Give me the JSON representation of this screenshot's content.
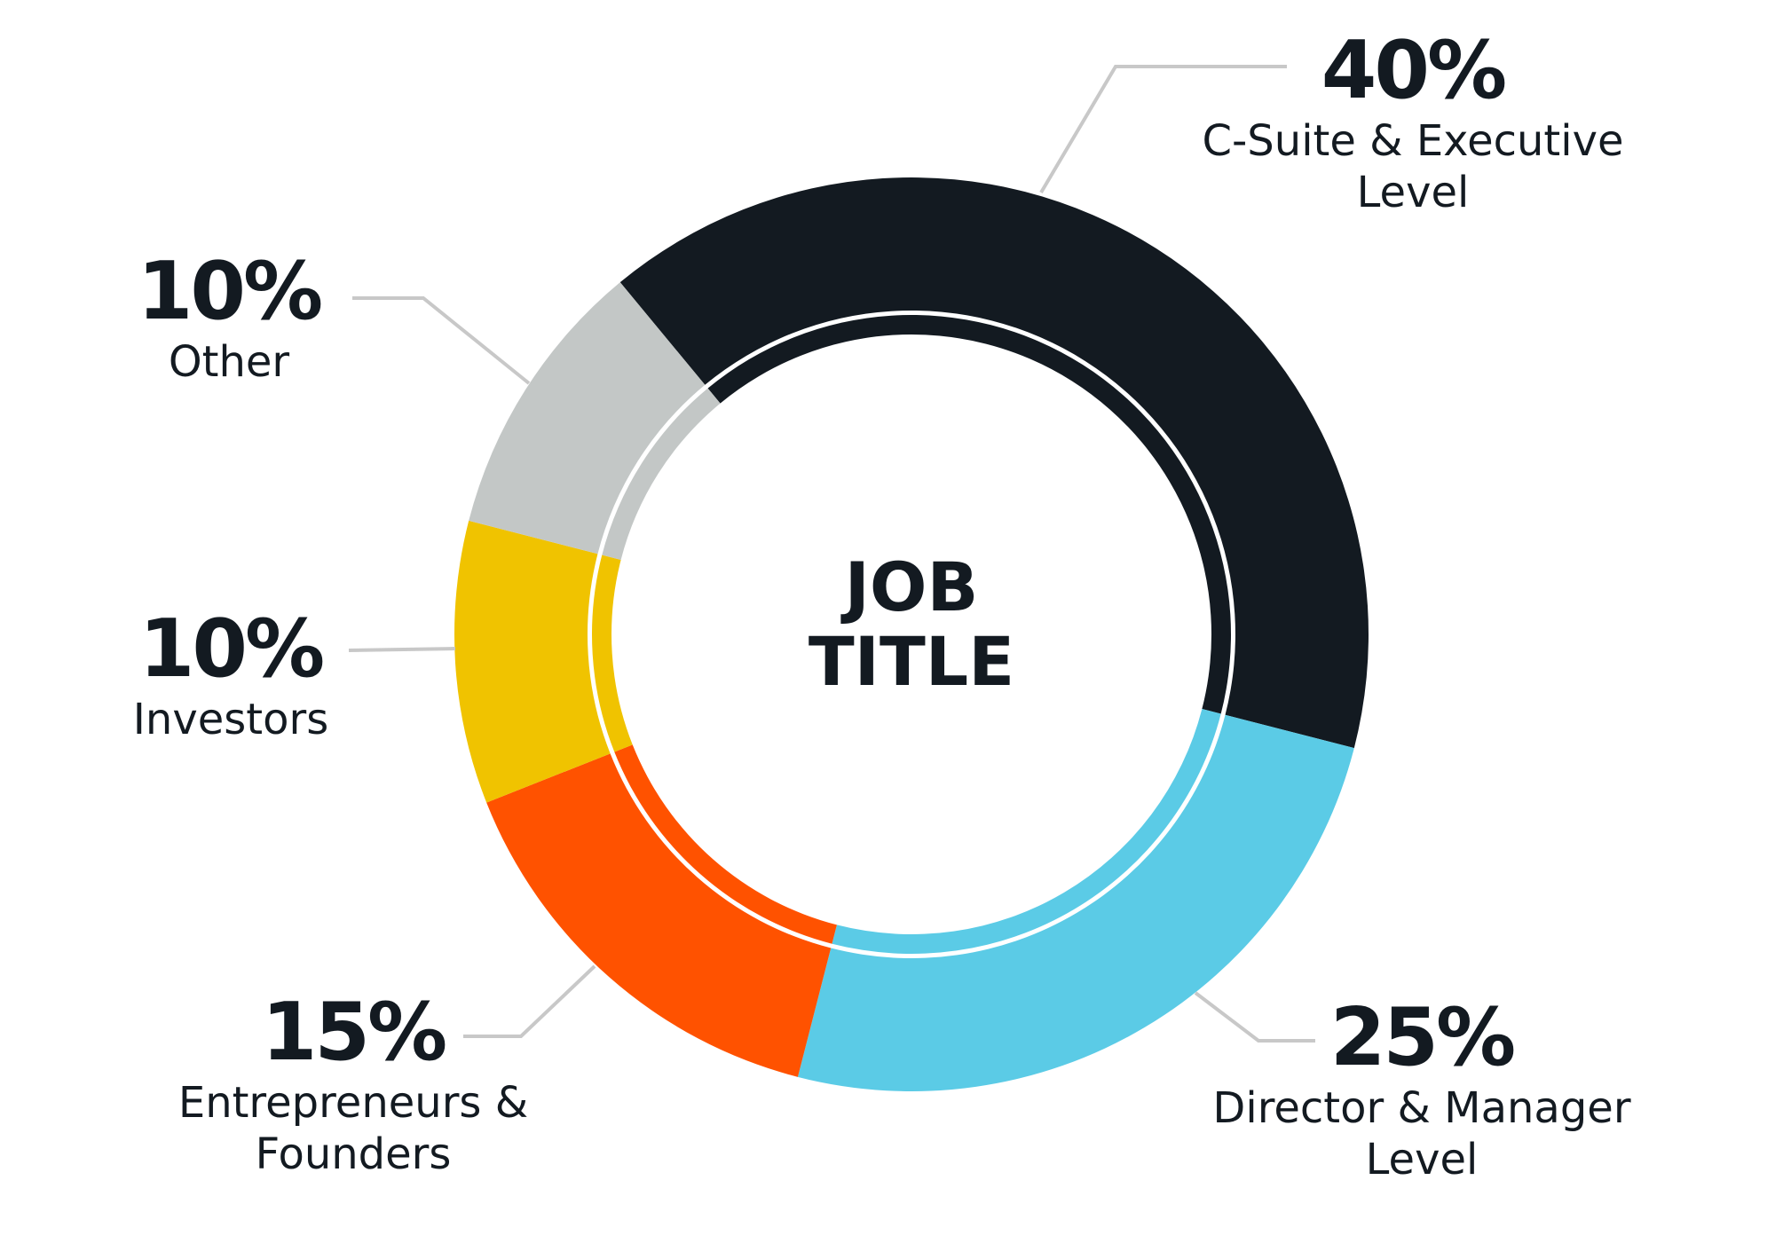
{
  "chart_data": {
    "type": "donut",
    "center_label": "JOB TITLE",
    "categories": [
      "C-Suite & Executive Level",
      "Director & Manager Level",
      "Entrepreneurs & Founders",
      "Investors",
      "Other"
    ],
    "values": [
      40,
      25,
      15,
      10,
      10
    ],
    "value_labels": [
      "40%",
      "25%",
      "15%",
      "10%",
      "10%"
    ],
    "colors": [
      "#131a21",
      "#5bcbe6",
      "#ff5200",
      "#f0c300",
      "#c3c7c6"
    ]
  }
}
